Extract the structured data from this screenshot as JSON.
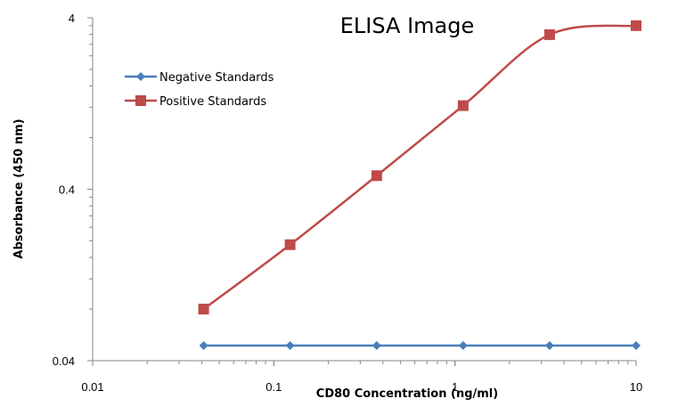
{
  "chart_data": {
    "type": "line",
    "title": "ELISA Image",
    "xlabel": "CD80 Concentration (ng/ml)",
    "ylabel": "Absorbance (450 nm)",
    "x_scale": "log",
    "y_scale": "log",
    "xlim": [
      0.01,
      10
    ],
    "ylim": [
      0.04,
      4
    ],
    "x_ticks": [
      "0.01",
      "0.1",
      "1",
      "10"
    ],
    "y_ticks": [
      "0.04",
      "0.4",
      "4"
    ],
    "grid": false,
    "legend_position": "top-left",
    "series": [
      {
        "name": "Negative Standards",
        "color": "#4a7ebb",
        "marker": "diamond",
        "x": [
          0.041,
          0.123,
          0.37,
          1.11,
          3.33,
          10
        ],
        "y": [
          0.049,
          0.049,
          0.049,
          0.049,
          0.049,
          0.049
        ]
      },
      {
        "name": "Positive Standards",
        "color": "#be4b48",
        "marker": "square",
        "x": [
          0.041,
          0.123,
          0.37,
          1.11,
          3.33,
          10
        ],
        "y": [
          0.08,
          0.19,
          0.48,
          1.23,
          3.19,
          3.6
        ]
      }
    ]
  }
}
